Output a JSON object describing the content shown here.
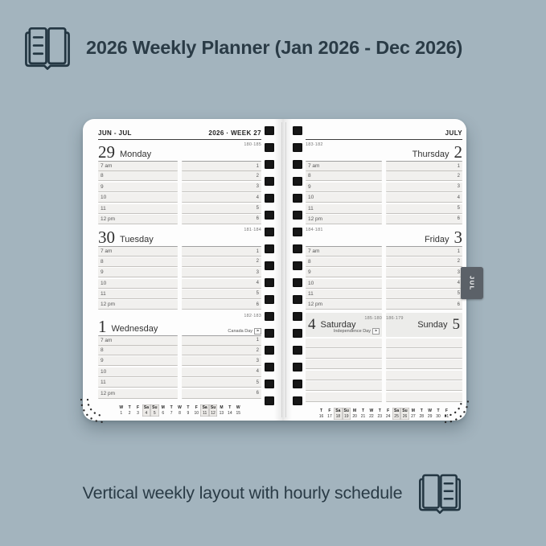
{
  "colors": {
    "background": "#a3b4be",
    "ink": "#2a3b46",
    "page": "#fdfdfd",
    "hole": "#171717",
    "row_fill": "#f1f0ee",
    "row_line": "#c5c3c0",
    "weekend_band": "#ececea",
    "tab_fill": "#5b6168",
    "tab_text": "#ffffff"
  },
  "header": {
    "title": "2026 Weekly Planner (Jan 2026 - Dec 2026)",
    "icon": "open-planner-icon"
  },
  "footer": {
    "caption": "Vertical weekly layout with hourly schedule",
    "icon": "open-planner-icon"
  },
  "planner": {
    "left_page": {
      "month_range": "JUN - JUL",
      "week_label": "2026 · WEEK 27",
      "hours": [
        "7 am",
        "8",
        "9",
        "10",
        "11",
        "12 pm"
      ],
      "afternoon_slots": [
        "1",
        "2",
        "3",
        "4",
        "5",
        "6"
      ],
      "days": [
        {
          "number": "29",
          "name": "Monday",
          "day_of_year": "180·185",
          "holiday": ""
        },
        {
          "number": "30",
          "name": "Tuesday",
          "day_of_year": "181·184",
          "holiday": ""
        },
        {
          "number": "1",
          "name": "Wednesday",
          "day_of_year": "182·183",
          "holiday": "Canada Day"
        }
      ],
      "mini_calendar": {
        "day_letters": [
          "W",
          "T",
          "F",
          "Sa",
          "Su",
          "M",
          "T",
          "W",
          "T",
          "F",
          "Sa",
          "Su",
          "M",
          "T",
          "W"
        ],
        "day_numbers": [
          "1",
          "2",
          "3",
          "4",
          "5",
          "6",
          "7",
          "8",
          "9",
          "10",
          "11",
          "12",
          "13",
          "14",
          "15"
        ],
        "weekend_columns": [
          3,
          4,
          10,
          11
        ]
      }
    },
    "right_page": {
      "month_label": "JULY",
      "month_tab": "JUL",
      "hours": [
        "7 am",
        "8",
        "9",
        "10",
        "11",
        "12 pm"
      ],
      "afternoon_slots": [
        "1",
        "2",
        "3",
        "4",
        "5",
        "6"
      ],
      "weekdays": [
        {
          "number": "2",
          "name": "Thursday",
          "day_of_year": "183·182",
          "holiday": ""
        },
        {
          "number": "3",
          "name": "Friday",
          "day_of_year": "184·181",
          "holiday": ""
        }
      ],
      "weekend": {
        "saturday": {
          "number": "4",
          "name": "Saturday",
          "day_of_year": "185·180",
          "holiday": "Independence Day"
        },
        "sunday": {
          "number": "5",
          "name": "Sunday",
          "day_of_year": "186·179",
          "holiday": ""
        }
      },
      "blank_row_count": 6,
      "mini_calendar": {
        "day_letters": [
          "T",
          "F",
          "Sa",
          "Su",
          "M",
          "T",
          "W",
          "T",
          "F",
          "Sa",
          "Su",
          "M",
          "T",
          "W",
          "T",
          "F"
        ],
        "day_numbers": [
          "16",
          "17",
          "18",
          "19",
          "20",
          "21",
          "22",
          "23",
          "24",
          "25",
          "26",
          "27",
          "28",
          "29",
          "30",
          "31"
        ],
        "weekend_columns": [
          2,
          3,
          9,
          10
        ]
      }
    },
    "binding_holes_per_side": 17
  }
}
